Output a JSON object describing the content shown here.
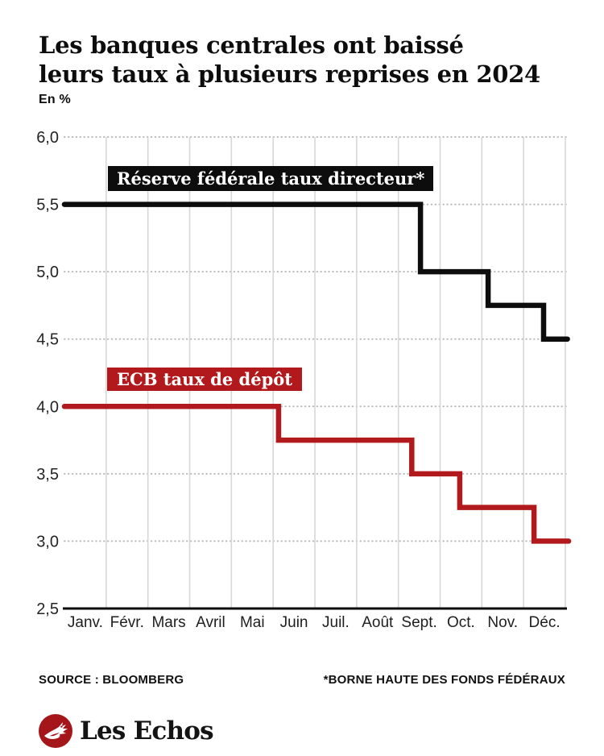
{
  "title": {
    "line1": "Les banques centrales ont baissé",
    "line2": "leurs taux à plusieurs reprises en 2024"
  },
  "unit_label": "En %",
  "chart_data": {
    "type": "line",
    "step": true,
    "title": "Les banques centrales ont baissé leurs taux à plusieurs reprises en 2024",
    "ylabel": "En %",
    "xlabel": "",
    "ylim": [
      2.5,
      6.0
    ],
    "x_range_months": [
      0,
      12
    ],
    "grid": {
      "horizontal": "dotted",
      "vertical": "solid",
      "grid_color_h": "#b9b9b9",
      "grid_color_v": "#d7d7d7"
    },
    "y_ticks": [
      {
        "value": 6.0,
        "label": "6,0"
      },
      {
        "value": 5.5,
        "label": "5,5"
      },
      {
        "value": 5.0,
        "label": "5,0"
      },
      {
        "value": 4.5,
        "label": "4,5"
      },
      {
        "value": 4.0,
        "label": "4,0"
      },
      {
        "value": 3.5,
        "label": "3,5"
      },
      {
        "value": 3.0,
        "label": "3,0"
      },
      {
        "value": 2.5,
        "label": "2,5"
      }
    ],
    "x_categories": [
      "Janv.",
      "Févr.",
      "Mars",
      "Avril",
      "Mai",
      "Juin",
      "Juil.",
      "Août",
      "Sept.",
      "Oct.",
      "Nov.",
      "Déc."
    ],
    "series": [
      {
        "name": "Réserve fédérale taux directeur*",
        "color": "#0d0d0d",
        "points": [
          {
            "x": 0.0,
            "y": 5.5
          },
          {
            "x": 8.53,
            "y": 5.5
          },
          {
            "x": 8.53,
            "y": 5.0
          },
          {
            "x": 10.15,
            "y": 5.0
          },
          {
            "x": 10.15,
            "y": 4.75
          },
          {
            "x": 11.48,
            "y": 4.75
          },
          {
            "x": 11.48,
            "y": 4.5
          },
          {
            "x": 12.05,
            "y": 4.5
          }
        ]
      },
      {
        "name": "ECB taux de dépôt",
        "color": "#b2191c",
        "points": [
          {
            "x": 0.0,
            "y": 4.0
          },
          {
            "x": 5.13,
            "y": 4.0
          },
          {
            "x": 5.13,
            "y": 3.75
          },
          {
            "x": 8.32,
            "y": 3.75
          },
          {
            "x": 8.32,
            "y": 3.5
          },
          {
            "x": 9.47,
            "y": 3.5
          },
          {
            "x": 9.47,
            "y": 3.25
          },
          {
            "x": 11.25,
            "y": 3.25
          },
          {
            "x": 11.25,
            "y": 3.0
          },
          {
            "x": 12.08,
            "y": 3.0
          }
        ]
      }
    ]
  },
  "footer": {
    "source": "SOURCE : BLOOMBERG",
    "note": "*BORNE HAUTE DES FONDS FÉDÉRAUX"
  },
  "logo": {
    "text": "Les Echos",
    "accent_color": "#a5161b"
  }
}
